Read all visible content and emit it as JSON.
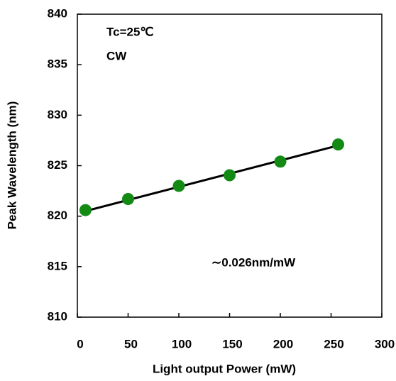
{
  "chart_data": {
    "type": "scatter",
    "x_label": "Light output Power (mW)",
    "y_label": "Peak Wavelength (nm)",
    "annotations": [
      "Tc=25℃",
      "CW",
      "∼0.026nm/mW"
    ],
    "series": [
      {
        "color": "#138a13",
        "x": [
          8,
          50,
          100,
          150,
          200,
          257
        ],
        "values": [
          820.6,
          821.7,
          823.0,
          824.05,
          825.4,
          827.1
        ]
      }
    ],
    "fit_line": {
      "color": "#000000",
      "x": [
        8,
        257
      ],
      "values": [
        820.5,
        827.0
      ]
    },
    "xlim": [
      0,
      300
    ],
    "xticks": [
      0,
      50,
      100,
      150,
      200,
      250,
      300
    ],
    "ylim": [
      810,
      840
    ],
    "yticks": [
      810,
      815,
      820,
      825,
      830,
      835,
      840
    ],
    "grid": false
  }
}
